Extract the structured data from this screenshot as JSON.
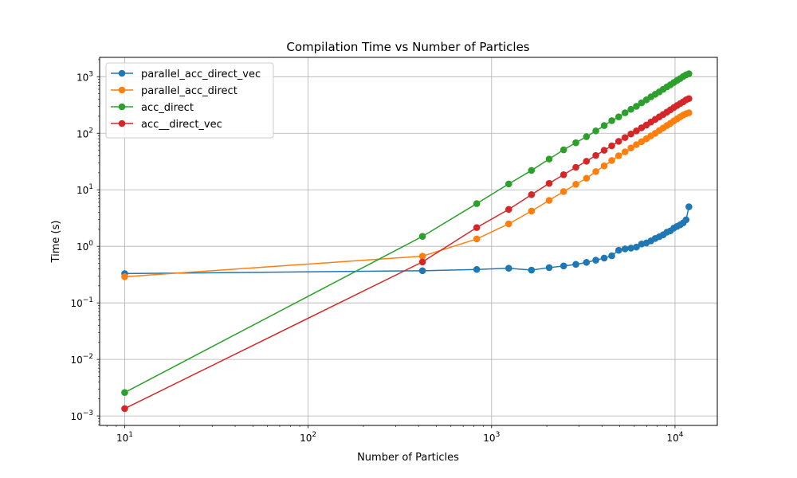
{
  "chart_data": {
    "type": "line",
    "title": "Compilation Time vs Number of Particles",
    "xlabel": "Number of Particles",
    "ylabel": "Time (s)",
    "xscale": "log",
    "yscale": "log",
    "xlim": [
      7.3,
      17000
    ],
    "ylim": [
      0.00068,
      2200
    ],
    "x_ticks": [
      {
        "value": 10,
        "base": "10",
        "exp": "1"
      },
      {
        "value": 100,
        "base": "10",
        "exp": "2"
      },
      {
        "value": 1000,
        "base": "10",
        "exp": "3"
      },
      {
        "value": 10000,
        "base": "10",
        "exp": "4"
      }
    ],
    "y_ticks": [
      {
        "value": 0.001,
        "base": "10",
        "exp": "−3"
      },
      {
        "value": 0.01,
        "base": "10",
        "exp": "−2"
      },
      {
        "value": 0.1,
        "base": "10",
        "exp": "−1"
      },
      {
        "value": 1,
        "base": "10",
        "exp": "0"
      },
      {
        "value": 10,
        "base": "10",
        "exp": "1"
      },
      {
        "value": 100,
        "base": "10",
        "exp": "2"
      },
      {
        "value": 1000,
        "base": "10",
        "exp": "3"
      }
    ],
    "grid": true,
    "legend_position": "top-left",
    "series": [
      {
        "name": "parallel_acc_direct_vec",
        "color": "#1f77b4",
        "x": [
          10,
          420,
          830,
          1240,
          1650,
          2060,
          2470,
          2880,
          3290,
          3700,
          4110,
          4520,
          4930,
          5340,
          5750,
          6160,
          6570,
          6980,
          7390,
          7800,
          8210,
          8620,
          9030,
          9440,
          9850,
          10260,
          10670,
          11080,
          11490,
          11900
        ],
        "y": [
          0.33,
          0.37,
          0.39,
          0.41,
          0.38,
          0.42,
          0.45,
          0.48,
          0.52,
          0.57,
          0.62,
          0.68,
          0.85,
          0.9,
          0.93,
          0.97,
          1.1,
          1.15,
          1.25,
          1.38,
          1.48,
          1.6,
          1.78,
          1.88,
          2.1,
          2.25,
          2.4,
          2.6,
          2.95,
          5.0
        ]
      },
      {
        "name": "parallel_acc_direct",
        "color": "#ff7f0e",
        "x": [
          10,
          420,
          830,
          1240,
          1650,
          2060,
          2470,
          2880,
          3290,
          3700,
          4110,
          4520,
          4930,
          5340,
          5750,
          6160,
          6570,
          6980,
          7390,
          7800,
          8210,
          8620,
          9030,
          9440,
          9850,
          10260,
          10670,
          11080,
          11490,
          11900
        ],
        "y": [
          0.29,
          0.67,
          1.35,
          2.5,
          4.2,
          6.5,
          9.3,
          12.5,
          16.0,
          21.0,
          26.5,
          33.0,
          40.0,
          47.0,
          55.0,
          63.0,
          71.0,
          80.0,
          90.0,
          100.0,
          112.0,
          124.0,
          137.0,
          150.0,
          165.0,
          180.0,
          195.0,
          210.0,
          222.0,
          230.0
        ]
      },
      {
        "name": "acc_direct",
        "color": "#2ca02c",
        "x": [
          10,
          420,
          830,
          1240,
          1650,
          2060,
          2470,
          2880,
          3290,
          3700,
          4110,
          4520,
          4930,
          5340,
          5750,
          6160,
          6570,
          6980,
          7390,
          7800,
          8210,
          8620,
          9030,
          9440,
          9850,
          10260,
          10670,
          11080,
          11490,
          11900
        ],
        "y": [
          0.0026,
          1.5,
          5.7,
          12.7,
          22.0,
          35.0,
          51.0,
          68.0,
          87.0,
          110.0,
          137.0,
          167.0,
          195.0,
          230.0,
          265.0,
          300.0,
          345.0,
          390.0,
          440.0,
          490.0,
          540.0,
          600.0,
          660.0,
          720.0,
          790.0,
          860.0,
          930.0,
          1010.0,
          1080.0,
          1130.0
        ]
      },
      {
        "name": "acc__direct_vec",
        "color": "#d62728",
        "x": [
          10,
          420,
          830,
          1240,
          1650,
          2060,
          2470,
          2880,
          3290,
          3700,
          4110,
          4520,
          4930,
          5340,
          5750,
          6160,
          6570,
          6980,
          7390,
          7800,
          8210,
          8620,
          9030,
          9440,
          9850,
          10260,
          10670,
          11080,
          11490,
          11900
        ],
        "y": [
          0.00135,
          0.53,
          2.15,
          4.5,
          8.2,
          13.0,
          18.5,
          25.0,
          32.0,
          40.5,
          50.0,
          60.0,
          72.0,
          84.0,
          97.0,
          110.0,
          125.0,
          140.0,
          158.0,
          176.0,
          195.0,
          215.0,
          237.0,
          260.0,
          285.0,
          310.0,
          335.0,
          360.0,
          390.0,
          410.0
        ]
      }
    ]
  }
}
